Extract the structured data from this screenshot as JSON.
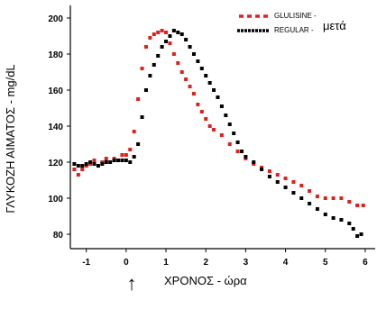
{
  "chart_data": {
    "type": "scatter",
    "xlabel": "ΧΡΟΝΟΣ - ώρα",
    "ylabel": "ΓΛΥΚΟΖΗ ΑΙΜΑΤΟΣ - mg/dL",
    "xlim": [
      -1.4,
      6.25
    ],
    "ylim": [
      72,
      207
    ],
    "xticks": [
      -1,
      0,
      1,
      2,
      3,
      4,
      5,
      6
    ],
    "yticks": [
      80,
      100,
      120,
      140,
      160,
      180,
      200
    ],
    "grid": false,
    "legend_position": "top-right",
    "annotation": {
      "symbol": "↑",
      "x": 0
    },
    "legend_suffix": "μετά",
    "series": [
      {
        "name": "GLULISINE -",
        "color": "#e0201c",
        "x": [
          -1.3,
          -1.2,
          -1.1,
          -1.0,
          -0.9,
          -0.8,
          -0.6,
          -0.5,
          -0.3,
          -0.1,
          0.0,
          0.1,
          0.2,
          0.3,
          0.4,
          0.5,
          0.6,
          0.7,
          0.8,
          0.9,
          1.0,
          1.1,
          1.2,
          1.3,
          1.4,
          1.5,
          1.6,
          1.7,
          1.8,
          1.9,
          2.0,
          2.1,
          2.2,
          2.4,
          2.6,
          2.8,
          3.0,
          3.2,
          3.4,
          3.6,
          3.8,
          4.0,
          4.2,
          4.4,
          4.6,
          4.8,
          5.0,
          5.2,
          5.4,
          5.6,
          5.8,
          5.95
        ],
        "y": [
          116,
          113,
          116,
          118,
          119,
          121,
          120,
          122,
          122,
          124,
          124,
          127,
          137,
          155,
          172,
          184,
          189,
          191,
          192,
          193,
          192,
          186,
          180,
          175,
          170,
          166,
          162,
          158,
          152,
          148,
          144,
          140,
          138,
          135,
          130,
          126,
          122,
          119,
          117,
          115,
          113,
          111,
          109,
          107,
          104,
          101,
          100,
          100,
          100,
          98,
          96,
          96
        ]
      },
      {
        "name": "REGULAR -",
        "color": "#000000",
        "x": [
          -1.3,
          -1.2,
          -1.1,
          -1.0,
          -0.9,
          -0.8,
          -0.7,
          -0.6,
          -0.5,
          -0.4,
          -0.3,
          -0.2,
          -0.1,
          0.0,
          0.1,
          0.2,
          0.3,
          0.4,
          0.5,
          0.6,
          0.7,
          0.8,
          0.9,
          1.0,
          1.1,
          1.2,
          1.3,
          1.4,
          1.5,
          1.6,
          1.7,
          1.8,
          1.9,
          2.0,
          2.1,
          2.2,
          2.3,
          2.4,
          2.5,
          2.6,
          2.7,
          2.8,
          2.9,
          3.0,
          3.2,
          3.4,
          3.6,
          3.8,
          4.0,
          4.2,
          4.4,
          4.6,
          4.8,
          5.0,
          5.2,
          5.4,
          5.6,
          5.7,
          5.8,
          5.9
        ],
        "y": [
          119,
          118,
          118,
          119,
          120,
          119,
          118,
          119,
          120,
          120,
          121,
          121,
          121,
          121,
          120,
          123,
          130,
          145,
          160,
          168,
          174,
          179,
          184,
          187,
          190,
          193,
          192,
          191,
          188,
          184,
          180,
          176,
          172,
          168,
          164,
          160,
          156,
          151,
          146,
          141,
          136,
          131,
          126,
          123,
          120,
          116,
          112,
          109,
          106,
          103,
          100,
          97,
          94,
          91,
          89,
          88,
          86,
          83,
          79,
          80
        ]
      }
    ]
  }
}
